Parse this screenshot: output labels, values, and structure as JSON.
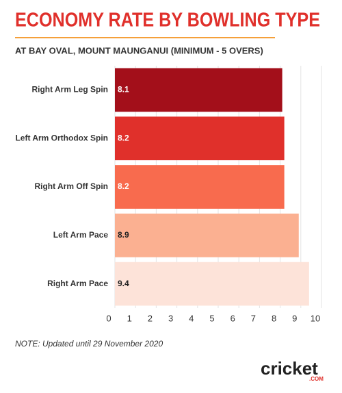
{
  "chart_data": {
    "type": "bar",
    "orientation": "horizontal",
    "title": "ECONOMY RATE BY BOWLING TYPE",
    "subtitle": "AT BAY OVAL, MOUNT MAUNGANUI (MINIMUM - 5 OVERS)",
    "categories": [
      "Right Arm Leg Spin",
      "Left Arm Orthodox Spin",
      "Right Arm Off Spin",
      "Left Arm Pace",
      "Right Arm Pace"
    ],
    "values": [
      8.1,
      8.2,
      8.2,
      8.9,
      9.4
    ],
    "colors": [
      "#a30f1a",
      "#e0302b",
      "#f86b4e",
      "#fbb091",
      "#fde3d9"
    ],
    "xlim": [
      0,
      10
    ],
    "xticks": [
      0,
      1,
      2,
      3,
      4,
      5,
      6,
      7,
      8,
      9,
      10
    ],
    "grid": true,
    "note": "NOTE: Updated until 29 November 2020",
    "logo": "cricket",
    "logo_suffix": ".COM"
  }
}
